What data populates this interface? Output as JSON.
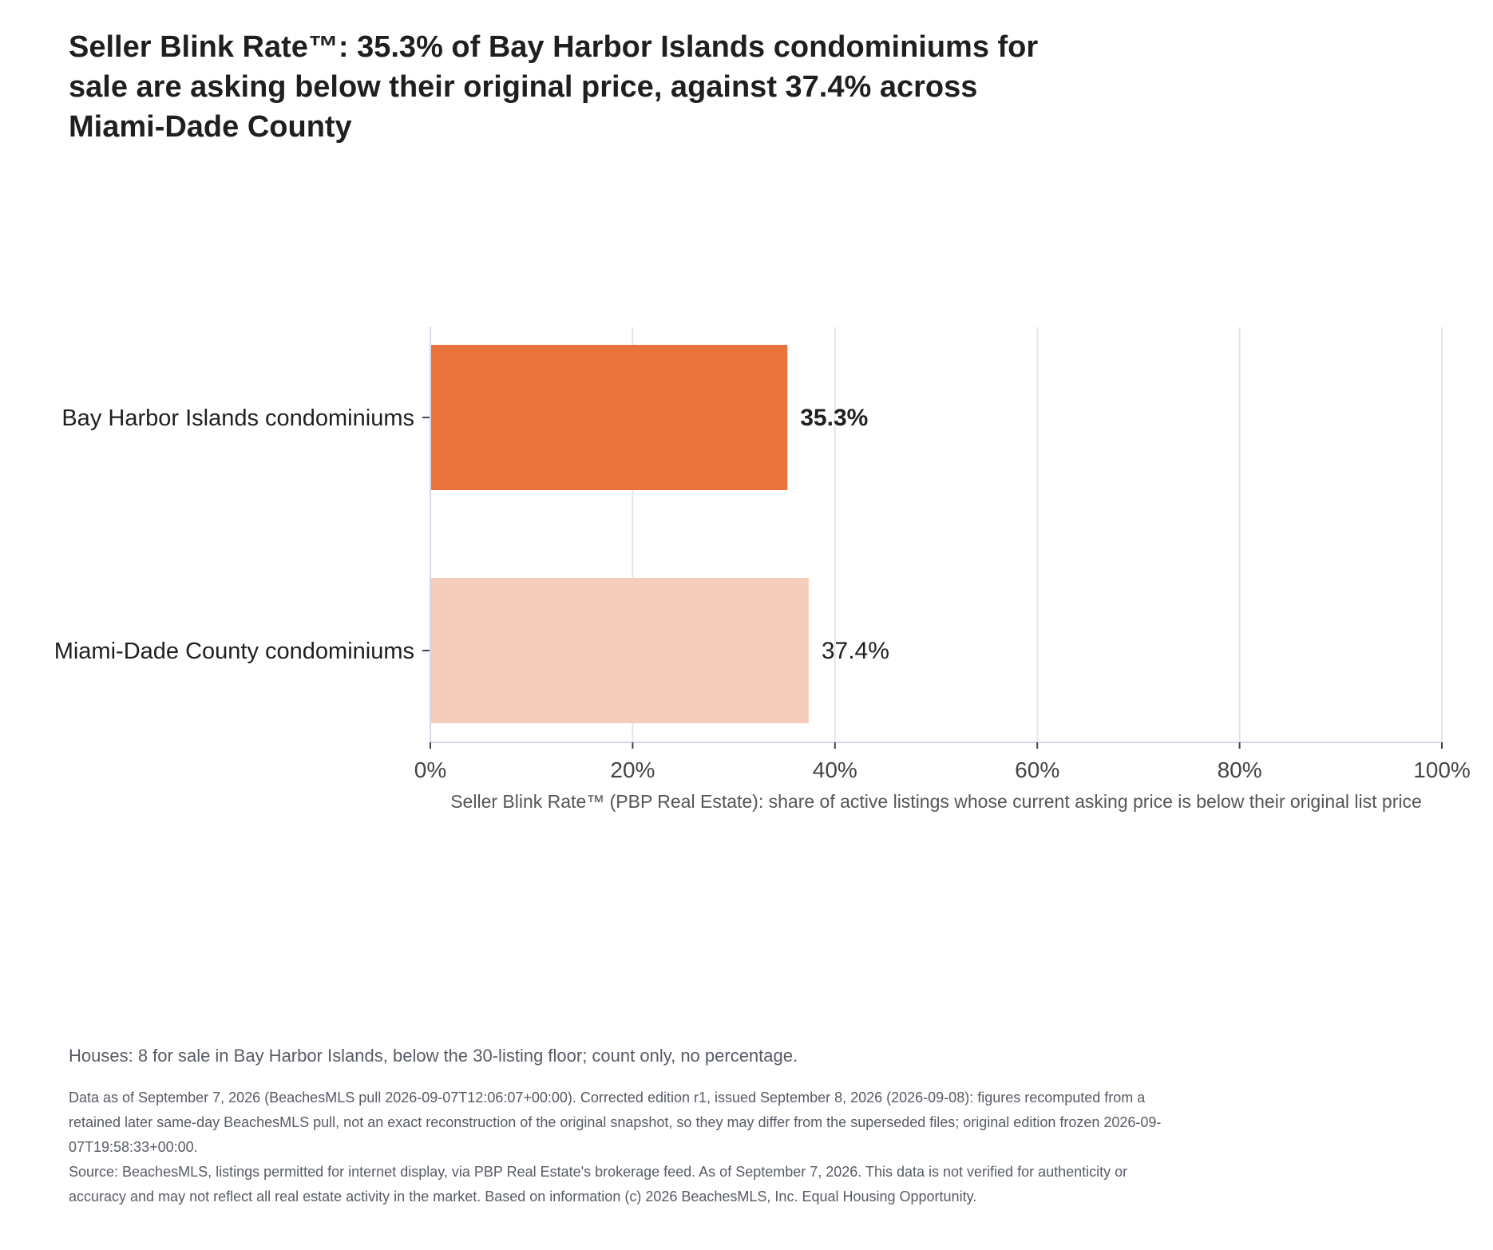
{
  "title": "Seller Blink Rate™: 35.3% of Bay Harbor Islands condominiums for sale are asking below their original price, against 37.4% across Miami-Dade County",
  "chart_data": {
    "type": "bar",
    "orientation": "horizontal",
    "categories": [
      "Bay Harbor Islands condominiums",
      "Miami-Dade County condominiums"
    ],
    "values": [
      35.3,
      37.4
    ],
    "value_labels": [
      "35.3%",
      "37.4%"
    ],
    "colors": [
      "#e8743b",
      "#f6cdbb"
    ],
    "xlabel": "Seller Blink Rate™ (PBP Real Estate): share of active listings whose current asking price is below their original list price",
    "ylabel": "",
    "xlim": [
      0,
      100
    ],
    "x_ticks": [
      0,
      20,
      40,
      60,
      80,
      100
    ],
    "x_tick_labels": [
      "0%",
      "20%",
      "40%",
      "60%",
      "80%",
      "100%"
    ],
    "grid": "vertical",
    "legend": "none",
    "grid_color": "#e4e4ee",
    "axis_color": "#d6d6e6"
  },
  "notes": {
    "houses": "Houses: 8 for sale in Bay Harbor Islands, below the 30-listing floor; count only, no percentage.",
    "data_as_of": "Data as of September 7, 2026 (BeachesMLS pull 2026-09-07T12:06:07+00:00). Corrected edition r1, issued September 8, 2026 (2026-09-08): figures recomputed from a retained later same-day BeachesMLS pull, not an exact reconstruction of the original snapshot, so they may differ from the superseded files; original edition frozen 2026-09-07T19:58:33+00:00.",
    "source": "Source: BeachesMLS, listings permitted for internet display, via PBP Real Estate's brokerage feed. As of September 7, 2026. This data is not verified for authenticity or accuracy and may not reflect all real estate activity in the market. Based on information (c) 2026 BeachesMLS, Inc. Equal Housing Opportunity."
  }
}
